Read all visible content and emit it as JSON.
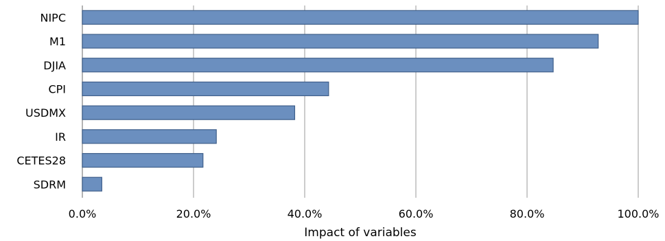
{
  "chart_data": {
    "type": "bar",
    "orientation": "horizontal",
    "categories": [
      "NIPC",
      "M1",
      "DJIA",
      "CPI",
      "USDMX",
      "IR",
      "CETES28",
      "SDRM"
    ],
    "values": [
      100.0,
      92.8,
      84.7,
      44.3,
      38.2,
      24.1,
      21.7,
      3.5
    ],
    "xlabel": "Impact of variables",
    "xlim": [
      0,
      100
    ],
    "x_ticks": [
      "0.0%",
      "20.0%",
      "40.0%",
      "60.0%",
      "80.0%",
      "100.0%"
    ],
    "grid": "vertical",
    "legend": "none",
    "colors": {
      "bar_fill": "#6b8fbf",
      "bar_stroke": "#3f5f8a",
      "grid": "#9a9a9a",
      "axis": "#9a9a9a"
    }
  }
}
